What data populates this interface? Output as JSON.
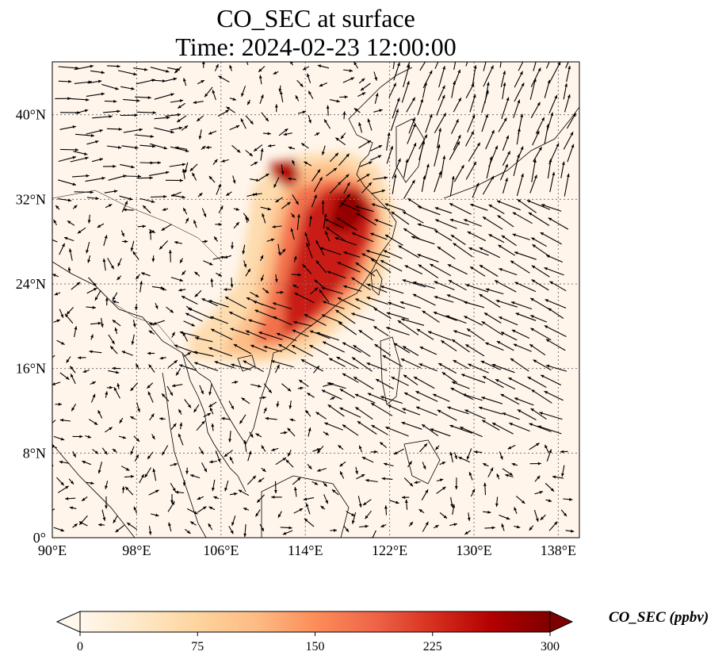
{
  "title": {
    "line1": "CO_SEC at surface",
    "line2": "Time: 2024-02-23 12:00:00"
  },
  "map": {
    "lon_range": [
      90,
      140
    ],
    "lat_range": [
      0,
      45
    ],
    "lon_ticks": [
      {
        "value": 90,
        "label": "90°E"
      },
      {
        "value": 98,
        "label": "98°E"
      },
      {
        "value": 106,
        "label": "106°E"
      },
      {
        "value": 114,
        "label": "114°E"
      },
      {
        "value": 122,
        "label": "122°E"
      },
      {
        "value": 130,
        "label": "130°E"
      },
      {
        "value": 138,
        "label": "138°E"
      }
    ],
    "lat_ticks": [
      {
        "value": 0,
        "label": "0°"
      },
      {
        "value": 8,
        "label": "8°N"
      },
      {
        "value": 16,
        "label": "16°N"
      },
      {
        "value": 24,
        "label": "24°N"
      },
      {
        "value": 32,
        "label": "32°N"
      },
      {
        "value": 40,
        "label": "40°N"
      }
    ],
    "gridlines": "dotted",
    "background_color": "#fff5eb",
    "plume_regions": [
      {
        "level": 60,
        "points": [
          [
            103,
            17
          ],
          [
            106,
            16.7
          ],
          [
            110,
            16.4
          ],
          [
            114,
            17.2
          ],
          [
            117,
            19.5
          ],
          [
            121,
            23
          ],
          [
            122,
            27
          ],
          [
            122.5,
            31
          ],
          [
            121,
            35
          ],
          [
            118,
            36.5
          ],
          [
            114,
            36.3
          ],
          [
            111,
            35.5
          ],
          [
            109,
            33
          ],
          [
            108.5,
            29
          ],
          [
            107.5,
            24
          ],
          [
            105,
            21
          ],
          [
            103,
            19
          ]
        ]
      },
      {
        "level": 110,
        "points": [
          [
            106,
            17.6
          ],
          [
            110,
            17.2
          ],
          [
            114,
            18.5
          ],
          [
            118,
            22
          ],
          [
            121,
            26
          ],
          [
            121.5,
            30
          ],
          [
            120,
            34
          ],
          [
            117,
            35.5
          ],
          [
            113,
            35
          ],
          [
            111,
            31
          ],
          [
            110,
            27
          ],
          [
            109,
            22
          ],
          [
            107,
            19
          ]
        ]
      },
      {
        "level": 175,
        "points": [
          [
            109,
            18.2
          ],
          [
            112,
            18.5
          ],
          [
            116,
            21
          ],
          [
            119,
            24
          ],
          [
            120.5,
            28
          ],
          [
            121,
            31
          ],
          [
            119,
            33.8
          ],
          [
            116,
            34
          ],
          [
            113,
            33
          ],
          [
            112,
            30
          ],
          [
            111,
            25
          ],
          [
            110,
            21
          ]
        ]
      },
      {
        "level": 240,
        "points": [
          [
            112,
            19
          ],
          [
            115,
            21
          ],
          [
            118,
            24.5
          ],
          [
            120,
            28
          ],
          [
            120.5,
            31
          ],
          [
            119,
            33
          ],
          [
            116,
            33
          ],
          [
            114,
            31
          ],
          [
            113,
            27
          ],
          [
            112,
            23
          ]
        ]
      },
      {
        "level": 260,
        "points": [
          [
            110.5,
            35.4
          ],
          [
            113,
            35.8
          ],
          [
            113.5,
            34
          ],
          [
            112.5,
            33
          ],
          [
            111,
            34
          ]
        ]
      },
      {
        "level": 285,
        "points": [
          [
            116,
            29
          ],
          [
            118.5,
            29
          ],
          [
            120,
            31
          ],
          [
            119,
            32.8
          ],
          [
            117,
            32.5
          ]
        ]
      }
    ],
    "wind_field": "quiver arrows (black)"
  },
  "colorbar": {
    "vmin": 0,
    "vmax": 300,
    "ticks": [
      {
        "value": 0,
        "label": "0"
      },
      {
        "value": 75,
        "label": "75"
      },
      {
        "value": 150,
        "label": "150"
      },
      {
        "value": 225,
        "label": "225"
      },
      {
        "value": 300,
        "label": "300"
      }
    ],
    "label": "CO_SEC (ppbv)",
    "colormap": "OrRd",
    "colors": [
      "#fff7ec",
      "#fee8c8",
      "#fdd49e",
      "#fdbb84",
      "#fc8d59",
      "#ef6548",
      "#d7301f",
      "#b30000",
      "#7f0000"
    ],
    "extend": "both"
  }
}
